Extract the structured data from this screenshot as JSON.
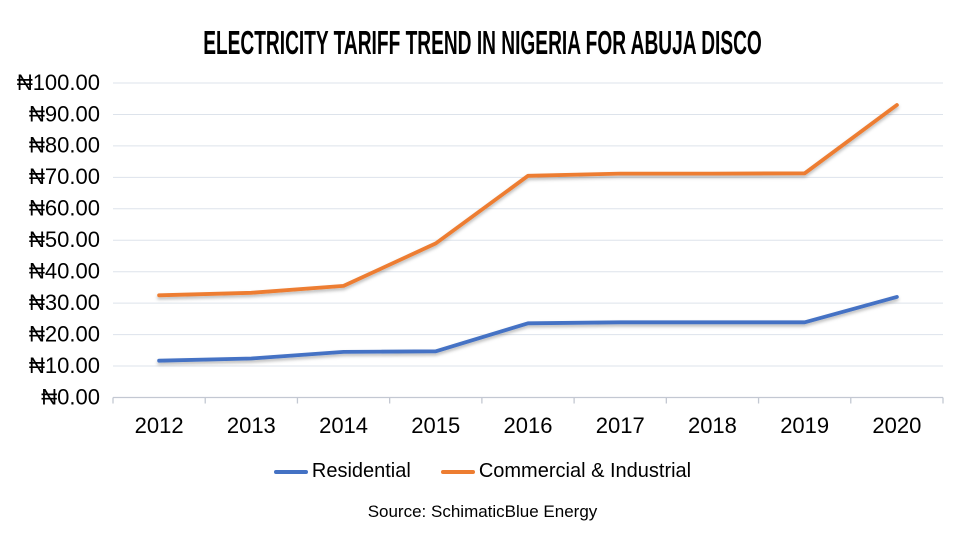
{
  "colors": {
    "residential": "#4472C4",
    "commercial_industrial": "#ED7D31",
    "gridline": "#DDE3EB",
    "axis_line": "#C3C8D2",
    "text": "#000000"
  },
  "chart_data": {
    "type": "line",
    "title": "ELECTRICITY TARIFF TREND IN NIGERIA FOR ABUJA DISCO",
    "categories": [
      "2012",
      "2013",
      "2014",
      "2015",
      "2016",
      "2017",
      "2018",
      "2019",
      "2020"
    ],
    "series": [
      {
        "name": "Residential",
        "color": "#4472C4",
        "values": [
          11.7,
          12.4,
          14.5,
          14.7,
          23.6,
          23.9,
          23.9,
          23.9,
          32.0
        ]
      },
      {
        "name": "Commercial & Industrial",
        "color": "#ED7D31",
        "values": [
          32.5,
          33.3,
          35.5,
          49.0,
          70.5,
          71.2,
          71.2,
          71.3,
          93.0
        ]
      }
    ],
    "ylim": [
      0,
      100
    ],
    "y_tick_step": 10,
    "currency_prefix": "₦",
    "y_tick_labels": [
      "₦0.00",
      "₦10.00",
      "₦20.00",
      "₦30.00",
      "₦40.00",
      "₦50.00",
      "₦60.00",
      "₦70.00",
      "₦80.00",
      "₦90.00",
      "₦100.00"
    ],
    "grid": true,
    "legend_position": "bottom",
    "source": "Source: SchimaticBlue Energy"
  }
}
